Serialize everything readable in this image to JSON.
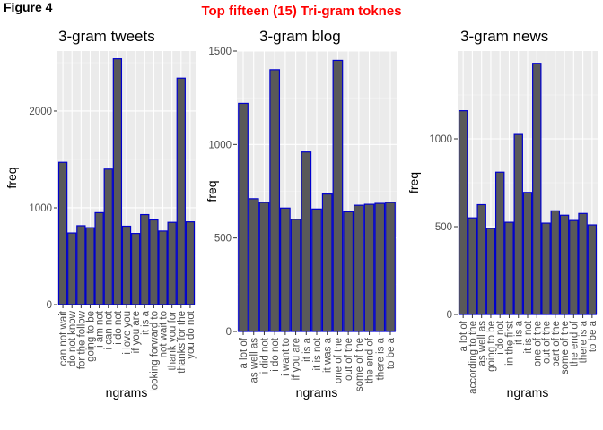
{
  "figure_label": "Figure 4",
  "figure_title": "Top fifteen (15) Tri-gram toknes",
  "colors": {
    "title": "#ff0000",
    "bar_fill": "#595959",
    "bar_stroke": "#0000cd",
    "panel": "#ebebeb"
  },
  "chart_data": [
    {
      "type": "bar",
      "title": "3-gram tweets",
      "xlabel": "ngrams",
      "ylabel": "freq",
      "ylim": [
        0,
        2620
      ],
      "yticks": [
        0,
        1000,
        2000
      ],
      "categories": [
        "can not wait",
        "do not know",
        "for the follow",
        "going to be",
        "i am not",
        "i can not",
        "i do not",
        "i love you",
        "if you are",
        "it is a",
        "looking forward to",
        "not wait to",
        "thank you for",
        "thanks for the",
        "you do not"
      ],
      "values": [
        1470,
        740,
        815,
        795,
        950,
        1400,
        2540,
        810,
        735,
        930,
        875,
        760,
        850,
        2340,
        855
      ]
    },
    {
      "type": "bar",
      "title": "3-gram blog",
      "xlabel": "ngrams",
      "ylabel": "freq",
      "ylim": [
        0,
        1500
      ],
      "yticks": [
        0,
        500,
        1000,
        1500
      ],
      "categories": [
        "a lot of",
        "as well as",
        "i did not",
        "i do not",
        "i want to",
        "if you are",
        "it is a",
        "it is not",
        "it was a",
        "one of the",
        "out of the",
        "some of the",
        "the end of",
        "there is a",
        "to be a"
      ],
      "values": [
        1220,
        710,
        690,
        1400,
        660,
        600,
        960,
        655,
        735,
        1450,
        640,
        675,
        680,
        685,
        690
      ]
    },
    {
      "type": "bar",
      "title": "3-gram news",
      "xlabel": "ngrams",
      "ylabel": "freq",
      "ylim": [
        0,
        1500
      ],
      "yticks": [
        0,
        500,
        1000
      ],
      "categories": [
        "a lot of",
        "according to the",
        "as well as",
        "going to be",
        "i do not",
        "in the first",
        "it is a",
        "it is not",
        "one of the",
        "out of the",
        "part of the",
        "some of the",
        "the end of",
        "there is a",
        "to be a"
      ],
      "values": [
        1160,
        550,
        625,
        490,
        810,
        525,
        1025,
        695,
        1430,
        520,
        590,
        565,
        535,
        575,
        510
      ]
    }
  ]
}
